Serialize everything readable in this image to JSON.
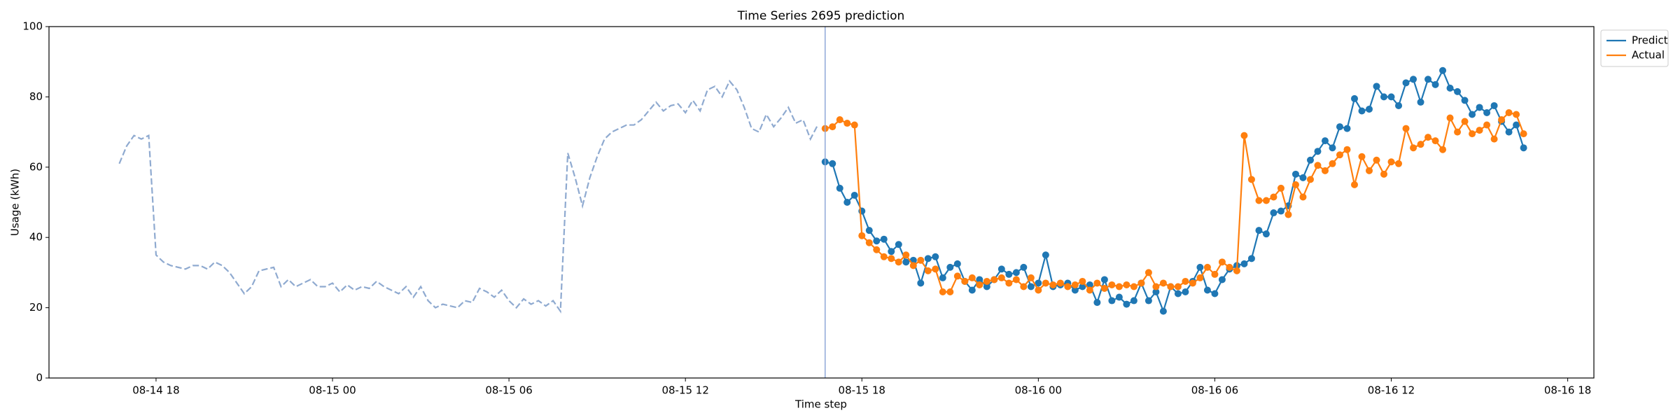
{
  "chart_data": {
    "type": "line",
    "title": "Time Series 2695 prediction",
    "x_label": "Time step",
    "y_label": "Usage (kWh)",
    "xlim": [
      14.36,
      66.89
    ],
    "xticks": [
      {
        "value": 18,
        "label": "08-14 18"
      },
      {
        "value": 24,
        "label": "08-15 00"
      },
      {
        "value": 30,
        "label": "08-15 06"
      },
      {
        "value": 36,
        "label": "08-15 12"
      },
      {
        "value": 42,
        "label": "08-15 18"
      },
      {
        "value": 48,
        "label": "08-16 00"
      },
      {
        "value": 54,
        "label": "08-16 06"
      },
      {
        "value": 60,
        "label": "08-16 12"
      },
      {
        "value": 66,
        "label": "08-16 18"
      }
    ],
    "ylim": [
      0,
      100
    ],
    "yticks": [
      0,
      20,
      40,
      60,
      80,
      100
    ],
    "grid": false,
    "legend": "outside-upper-right",
    "axvline": {
      "x": 40.75,
      "color": "#8fa8d8"
    },
    "series": [
      {
        "color": "#8faad0",
        "style": "dashed",
        "marker": false,
        "x": [
          16.75,
          17,
          17.25,
          17.5,
          17.75,
          18,
          18.25,
          18.5,
          18.75,
          19,
          19.25,
          19.5,
          19.75,
          20,
          20.25,
          20.5,
          20.75,
          21,
          21.25,
          21.5,
          21.75,
          22,
          22.25,
          22.5,
          22.75,
          23,
          23.25,
          23.5,
          23.75,
          24,
          24.25,
          24.5,
          24.75,
          25,
          25.25,
          25.5,
          25.75,
          26,
          26.25,
          26.5,
          26.75,
          27,
          27.25,
          27.5,
          27.75,
          28,
          28.25,
          28.5,
          28.75,
          29,
          29.25,
          29.5,
          29.75,
          30,
          30.25,
          30.5,
          30.75,
          31,
          31.25,
          31.5,
          31.75,
          32,
          32.25,
          32.5,
          32.75,
          33,
          33.25,
          33.5,
          33.75,
          34,
          34.25,
          34.5,
          34.75,
          35,
          35.25,
          35.5,
          35.75,
          36,
          36.25,
          36.5,
          36.75,
          37,
          37.25,
          37.5,
          37.75,
          38,
          38.25,
          38.5,
          38.75,
          39,
          39.25,
          39.5,
          39.75,
          40,
          40.25,
          40.5
        ],
        "values": [
          61,
          66,
          69,
          68,
          69,
          35,
          33,
          32,
          31.5,
          31,
          32,
          32,
          31,
          33,
          32,
          30,
          27,
          24,
          26,
          30.5,
          31,
          31.5,
          26,
          28,
          26,
          27,
          28,
          26,
          26,
          27,
          24.5,
          26.5,
          25,
          26,
          25.5,
          27.5,
          26,
          25,
          24,
          26,
          23,
          26,
          22,
          20,
          21,
          20.5,
          20,
          22,
          21.5,
          25.5,
          24.5,
          23,
          25,
          22,
          20,
          22.5,
          21,
          22,
          20.5,
          22,
          19,
          64,
          57,
          49,
          57,
          63,
          68,
          70,
          71,
          72,
          72,
          73.5,
          76,
          78.5,
          76,
          77.5,
          78,
          75.5,
          79,
          76,
          82,
          83,
          80,
          84.5,
          82,
          77,
          71,
          70,
          75,
          71.5,
          74,
          77,
          72.5,
          73.5,
          68,
          72
        ]
      },
      {
        "name": "Predict",
        "color": "#1f77b4",
        "style": "solid",
        "marker": true,
        "x": [
          40.75,
          41,
          41.25,
          41.5,
          41.75,
          42,
          42.25,
          42.5,
          42.75,
          43,
          43.25,
          43.5,
          43.75,
          44,
          44.25,
          44.5,
          44.75,
          45,
          45.25,
          45.5,
          45.75,
          46,
          46.25,
          46.5,
          46.75,
          47,
          47.25,
          47.5,
          47.75,
          48,
          48.25,
          48.5,
          48.75,
          49,
          49.25,
          49.5,
          49.75,
          50,
          50.25,
          50.5,
          50.75,
          51,
          51.25,
          51.5,
          51.75,
          52,
          52.25,
          52.5,
          52.75,
          53,
          53.25,
          53.5,
          53.75,
          54,
          54.25,
          54.5,
          54.75,
          55,
          55.25,
          55.5,
          55.75,
          56,
          56.25,
          56.5,
          56.75,
          57,
          57.25,
          57.5,
          57.75,
          58,
          58.25,
          58.5,
          58.75,
          59,
          59.25,
          59.5,
          59.75,
          60,
          60.25,
          60.5,
          60.75,
          61,
          61.25,
          61.5,
          61.75,
          62,
          62.25,
          62.5,
          62.75,
          63,
          63.25,
          63.5,
          63.75,
          64,
          64.25,
          64.5
        ],
        "values": [
          61.5,
          61,
          54,
          50,
          52,
          47.5,
          42,
          39,
          39.5,
          36,
          38,
          33,
          33.5,
          27,
          34,
          34.5,
          28.5,
          31.5,
          32.5,
          27.5,
          25,
          28,
          26,
          28,
          31,
          29.5,
          30,
          31.5,
          26,
          27,
          35,
          26,
          26.5,
          27,
          25,
          26,
          26.5,
          21.5,
          28,
          22,
          23,
          21,
          22,
          27,
          22,
          24.5,
          19,
          26,
          24,
          24.5,
          27.5,
          31.5,
          25,
          24,
          28,
          31,
          32,
          32.5,
          34,
          42,
          41,
          47,
          47.5,
          49,
          58,
          57,
          62,
          64.5,
          67.5,
          65.5,
          71.5,
          71,
          79.5,
          76,
          76.5,
          83,
          80,
          80,
          77.5,
          84,
          85,
          78.5,
          85,
          83.5,
          87.5,
          82.5,
          81.5,
          79,
          75,
          77,
          75.5,
          77.5,
          73,
          70,
          72,
          65.5
        ]
      },
      {
        "name": "Actual",
        "color": "#ff7f0e",
        "style": "solid",
        "marker": true,
        "x": [
          40.75,
          41,
          41.25,
          41.5,
          41.75,
          42,
          42.25,
          42.5,
          42.75,
          43,
          43.25,
          43.5,
          43.75,
          44,
          44.25,
          44.5,
          44.75,
          45,
          45.25,
          45.5,
          45.75,
          46,
          46.25,
          46.5,
          46.75,
          47,
          47.25,
          47.5,
          47.75,
          48,
          48.25,
          48.5,
          48.75,
          49,
          49.25,
          49.5,
          49.75,
          50,
          50.25,
          50.5,
          50.75,
          51,
          51.25,
          51.5,
          51.75,
          52,
          52.25,
          52.5,
          52.75,
          53,
          53.25,
          53.5,
          53.75,
          54,
          54.25,
          54.5,
          54.75,
          55,
          55.25,
          55.5,
          55.75,
          56,
          56.25,
          56.5,
          56.75,
          57,
          57.25,
          57.5,
          57.75,
          58,
          58.25,
          58.5,
          58.75,
          59,
          59.25,
          59.5,
          59.75,
          60,
          60.25,
          60.5,
          60.75,
          61,
          61.25,
          61.5,
          61.75,
          62,
          62.25,
          62.5,
          62.75,
          63,
          63.25,
          63.5,
          63.75,
          64,
          64.25,
          64.5
        ],
        "values": [
          71,
          71.5,
          73.5,
          72.5,
          72,
          40.5,
          38.5,
          36.5,
          34.5,
          34,
          33,
          35,
          32,
          33.5,
          30.5,
          31,
          24.5,
          24.5,
          29,
          27.5,
          28.5,
          26.5,
          27.5,
          28,
          28.5,
          27,
          28,
          26,
          28.5,
          25,
          27,
          26.5,
          27,
          26,
          26.5,
          27.5,
          25,
          27,
          25.5,
          26.5,
          26,
          26.5,
          26,
          27,
          30,
          26,
          27,
          26,
          26,
          27.5,
          27,
          28.5,
          31.5,
          29.5,
          33,
          31.5,
          30.5,
          69,
          56.5,
          50.5,
          50.5,
          51.5,
          54,
          46.5,
          55,
          51.5,
          56.5,
          60.5,
          59,
          61,
          63.5,
          65,
          55,
          63,
          59,
          62,
          58,
          61.5,
          61,
          71,
          65.5,
          66.5,
          68.5,
          67.5,
          65,
          74,
          70,
          73,
          69.5,
          70.5,
          72,
          68,
          73.5,
          75.5,
          75,
          69.5
        ]
      }
    ]
  }
}
